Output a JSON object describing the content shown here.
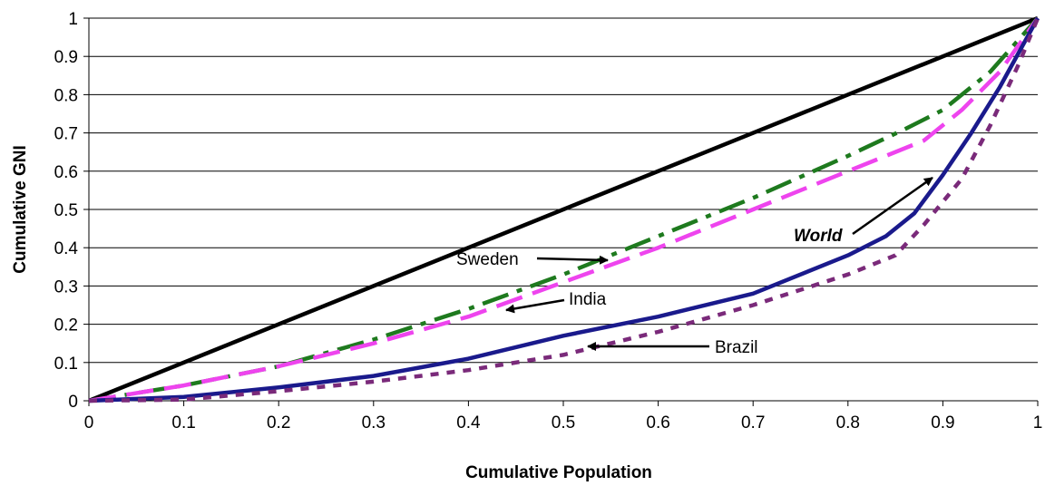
{
  "chart_data": {
    "type": "line",
    "title": "",
    "xlabel": "Cumulative Population",
    "ylabel": "Cumulative GNI",
    "xlim": [
      0,
      1
    ],
    "ylim": [
      0,
      1
    ],
    "grid": "horizontal",
    "x_ticks": [
      "0",
      "0.1",
      "0.2",
      "0.3",
      "0.4",
      "0.5",
      "0.6",
      "0.7",
      "0.8",
      "0.9",
      "1"
    ],
    "y_ticks": [
      "0",
      "0.1",
      "0.2",
      "0.3",
      "0.4",
      "0.5",
      "0.6",
      "0.7",
      "0.8",
      "0.9",
      "1"
    ],
    "series": [
      {
        "name": "",
        "color": "#000000",
        "style": "solid",
        "points": [
          [
            0,
            0
          ],
          [
            1,
            1
          ]
        ]
      },
      {
        "name": "Sweden",
        "color": "#1e7a1e",
        "style": "dash-dot",
        "points": [
          [
            0,
            0
          ],
          [
            0.1,
            0.04
          ],
          [
            0.2,
            0.09
          ],
          [
            0.3,
            0.16
          ],
          [
            0.4,
            0.24
          ],
          [
            0.5,
            0.33
          ],
          [
            0.6,
            0.43
          ],
          [
            0.7,
            0.53
          ],
          [
            0.8,
            0.64
          ],
          [
            0.86,
            0.71
          ],
          [
            0.9,
            0.76
          ],
          [
            0.95,
            0.86
          ],
          [
            1,
            1
          ]
        ]
      },
      {
        "name": "India",
        "color": "#ee44ee",
        "style": "dashed",
        "points": [
          [
            0,
            0
          ],
          [
            0.1,
            0.04
          ],
          [
            0.2,
            0.09
          ],
          [
            0.3,
            0.15
          ],
          [
            0.4,
            0.22
          ],
          [
            0.5,
            0.31
          ],
          [
            0.6,
            0.4
          ],
          [
            0.7,
            0.5
          ],
          [
            0.8,
            0.6
          ],
          [
            0.88,
            0.68
          ],
          [
            0.92,
            0.76
          ],
          [
            0.96,
            0.86
          ],
          [
            1,
            1
          ]
        ]
      },
      {
        "name": "World",
        "color": "#1a1a8c",
        "style": "solid",
        "points": [
          [
            0,
            0
          ],
          [
            0.05,
            0.005
          ],
          [
            0.1,
            0.01
          ],
          [
            0.2,
            0.035
          ],
          [
            0.3,
            0.065
          ],
          [
            0.4,
            0.11
          ],
          [
            0.5,
            0.17
          ],
          [
            0.6,
            0.22
          ],
          [
            0.7,
            0.28
          ],
          [
            0.8,
            0.38
          ],
          [
            0.84,
            0.43
          ],
          [
            0.87,
            0.49
          ],
          [
            0.9,
            0.59
          ],
          [
            0.93,
            0.7
          ],
          [
            0.96,
            0.82
          ],
          [
            1,
            1
          ]
        ]
      },
      {
        "name": "Brazil",
        "color": "#7a2a7a",
        "style": "dotted",
        "points": [
          [
            0,
            0
          ],
          [
            0.1,
            0.003
          ],
          [
            0.2,
            0.025
          ],
          [
            0.3,
            0.05
          ],
          [
            0.4,
            0.08
          ],
          [
            0.5,
            0.12
          ],
          [
            0.6,
            0.18
          ],
          [
            0.7,
            0.25
          ],
          [
            0.8,
            0.33
          ],
          [
            0.85,
            0.38
          ],
          [
            0.88,
            0.46
          ],
          [
            0.92,
            0.58
          ],
          [
            0.95,
            0.72
          ],
          [
            0.98,
            0.88
          ],
          [
            1,
            1
          ]
        ]
      }
    ],
    "annotations": [
      {
        "label": "Sweden",
        "style": "normal"
      },
      {
        "label": "India",
        "style": "normal"
      },
      {
        "label": "Brazil",
        "style": "normal"
      },
      {
        "label": "World",
        "style": "bold-italic"
      }
    ]
  }
}
